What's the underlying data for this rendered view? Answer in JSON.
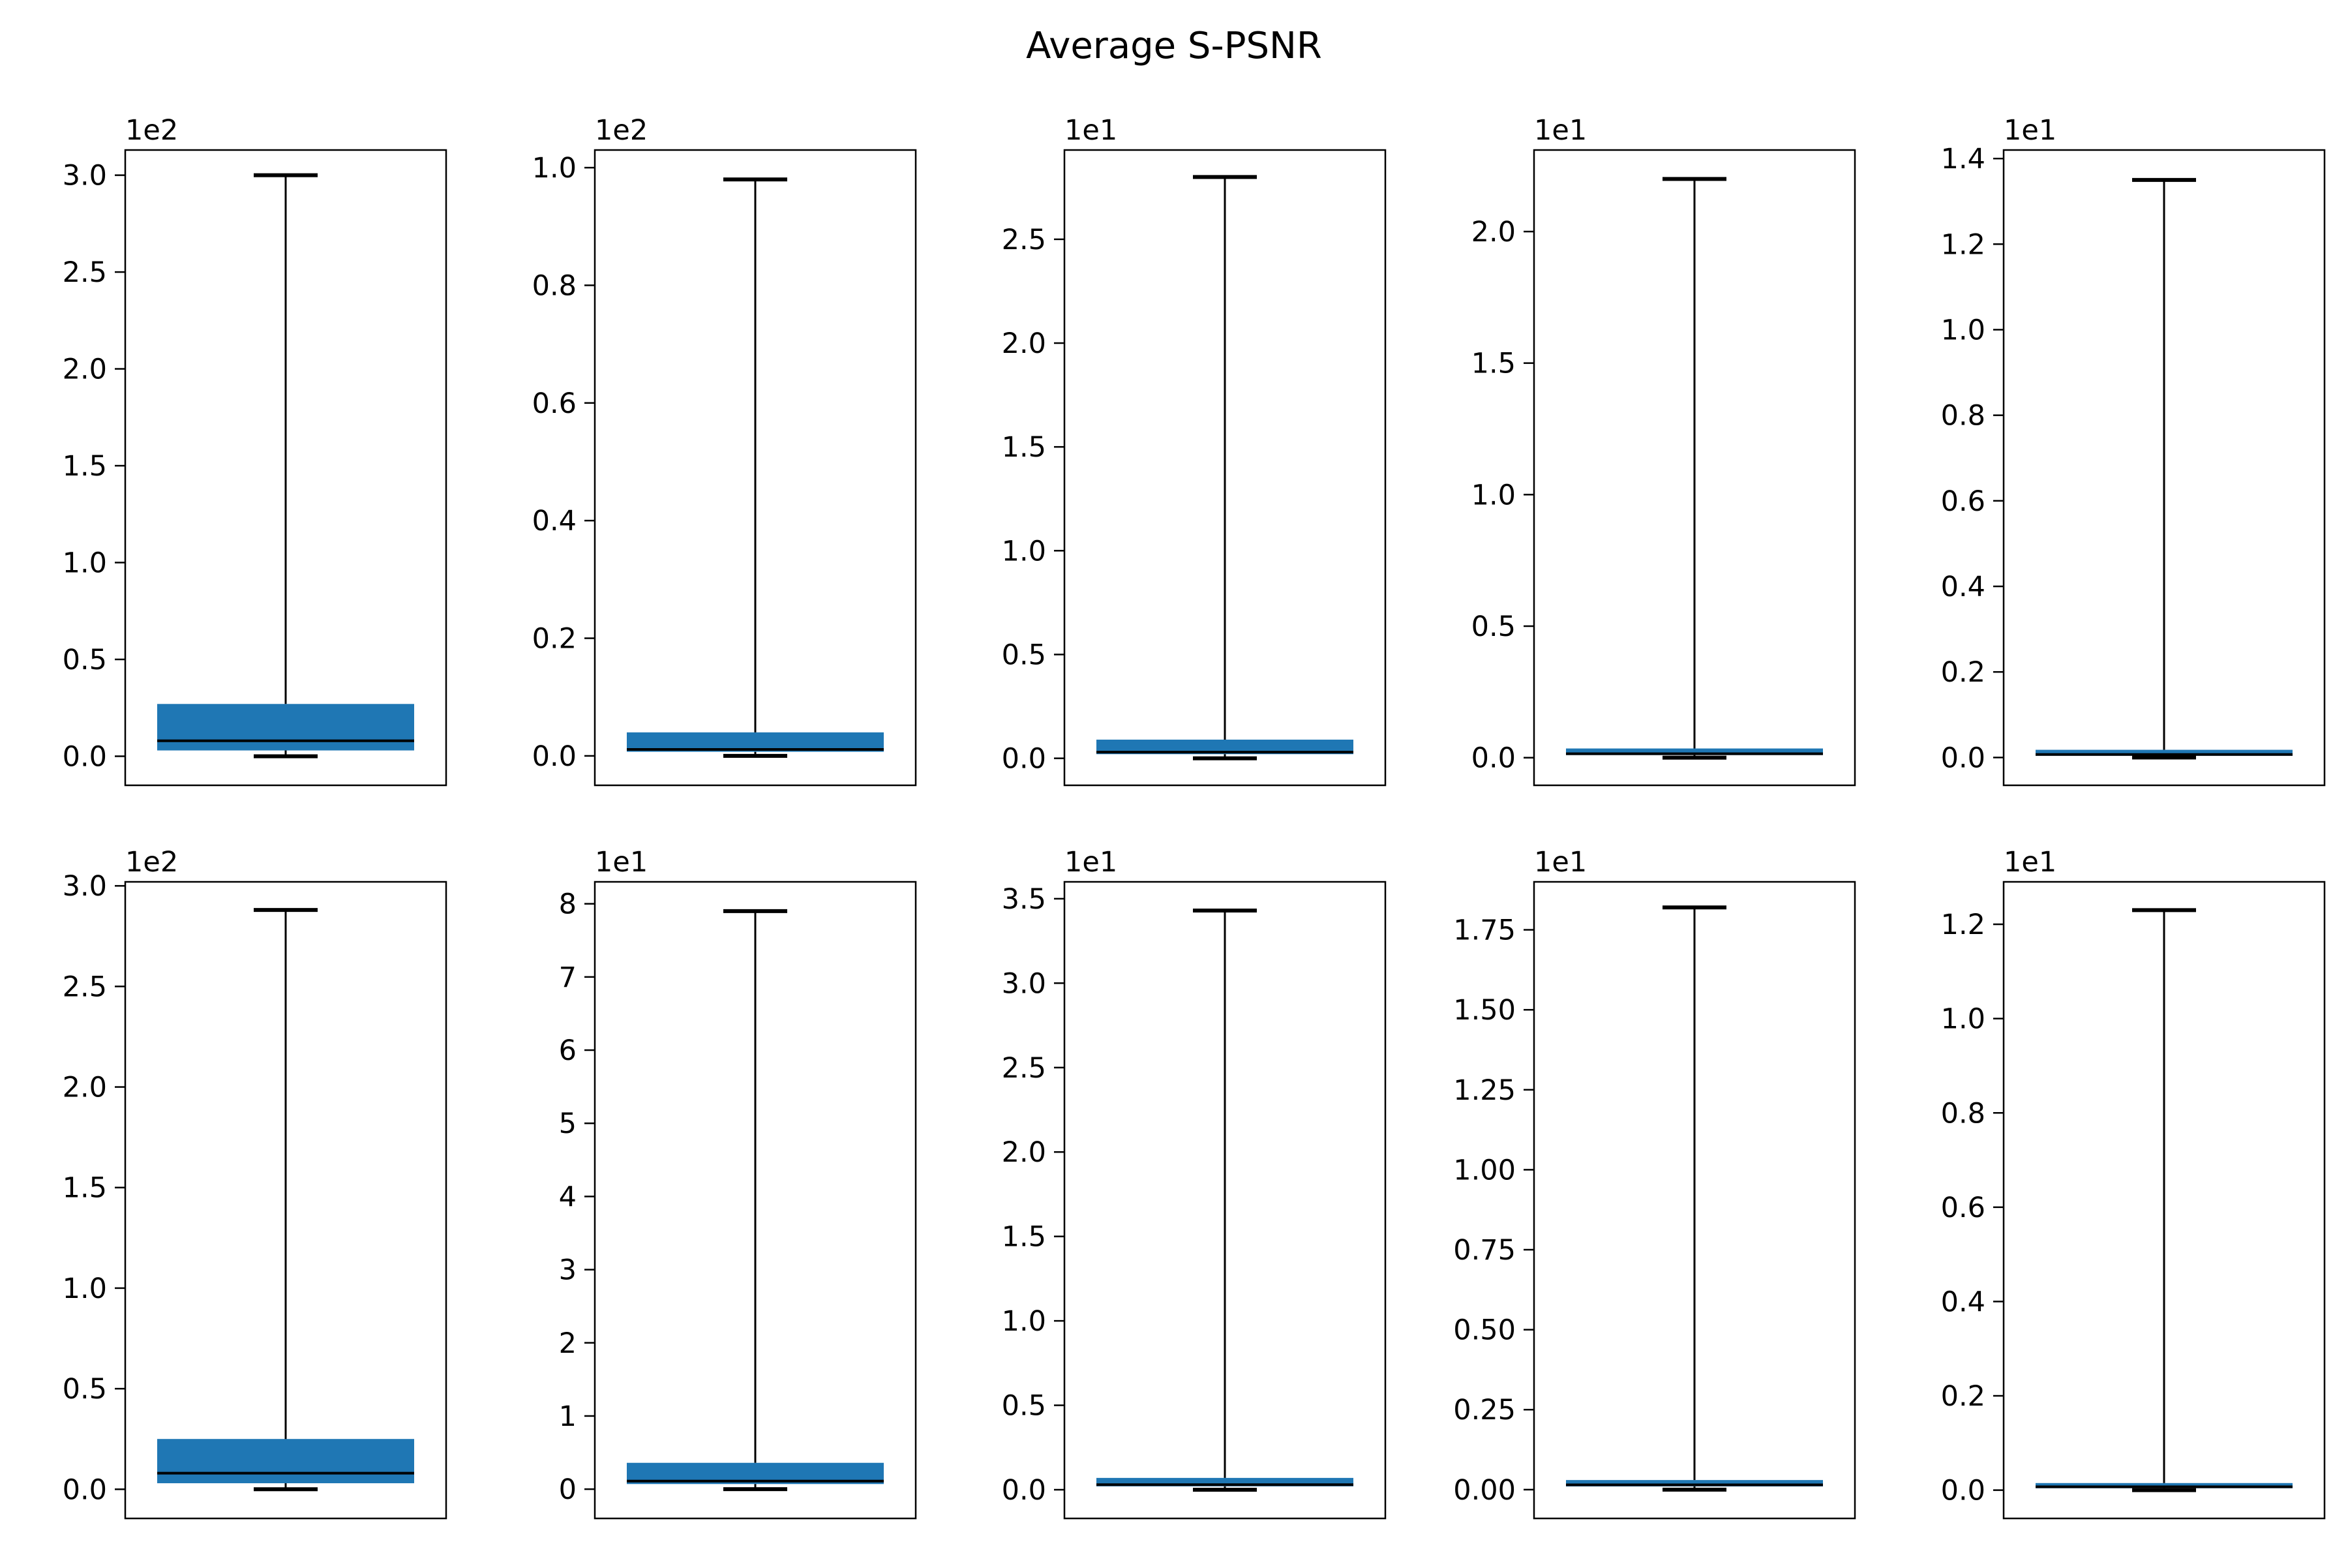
{
  "figure": {
    "title": "Average S-PSNR"
  },
  "colors": {
    "box": "#1f77b4",
    "line": "#000000",
    "background": "#ffffff"
  },
  "chart_data": [
    {
      "type": "box",
      "row": 1,
      "col": 1,
      "offset_label": "1e2",
      "ylim": [
        -0.15,
        3.13
      ],
      "yticks": [
        0.0,
        0.5,
        1.0,
        1.5,
        2.0,
        2.5,
        3.0
      ],
      "tick_labels": [
        "0.0",
        "0.5",
        "1.0",
        "1.5",
        "2.0",
        "2.5",
        "3.0"
      ],
      "box": {
        "whisker_low": 0.0,
        "q1": 0.03,
        "median": 0.08,
        "q3": 0.27,
        "whisker_high": 3.0
      }
    },
    {
      "type": "box",
      "row": 1,
      "col": 2,
      "offset_label": "1e2",
      "ylim": [
        -0.05,
        1.03
      ],
      "yticks": [
        0.0,
        0.2,
        0.4,
        0.6,
        0.8,
        1.0
      ],
      "tick_labels": [
        "0.0",
        "0.2",
        "0.4",
        "0.6",
        "0.8",
        "1.0"
      ],
      "box": {
        "whisker_low": 0.0,
        "q1": 0.007,
        "median": 0.011,
        "q3": 0.04,
        "whisker_high": 0.98
      }
    },
    {
      "type": "box",
      "row": 1,
      "col": 3,
      "offset_label": "1e1",
      "ylim": [
        -0.13,
        2.93
      ],
      "yticks": [
        0.0,
        0.5,
        1.0,
        1.5,
        2.0,
        2.5
      ],
      "tick_labels": [
        "0.0",
        "0.5",
        "1.0",
        "1.5",
        "2.0",
        "2.5"
      ],
      "box": {
        "whisker_low": 0.0,
        "q1": 0.02,
        "median": 0.03,
        "q3": 0.09,
        "whisker_high": 2.8
      }
    },
    {
      "type": "box",
      "row": 1,
      "col": 4,
      "offset_label": "1e1",
      "ylim": [
        -0.105,
        2.31
      ],
      "yticks": [
        0.0,
        0.5,
        1.0,
        1.5,
        2.0
      ],
      "tick_labels": [
        "0.0",
        "0.5",
        "1.0",
        "1.5",
        "2.0"
      ],
      "box": {
        "whisker_low": 0.0,
        "q1": 0.01,
        "median": 0.015,
        "q3": 0.035,
        "whisker_high": 2.2
      }
    },
    {
      "type": "box",
      "row": 1,
      "col": 5,
      "offset_label": "1e1",
      "ylim": [
        -0.065,
        1.42
      ],
      "yticks": [
        0.0,
        0.2,
        0.4,
        0.6,
        0.8,
        1.0,
        1.2,
        1.4
      ],
      "tick_labels": [
        "0.0",
        "0.2",
        "0.4",
        "0.6",
        "0.8",
        "1.0",
        "1.2",
        "1.4"
      ],
      "box": {
        "whisker_low": 0.0,
        "q1": 0.004,
        "median": 0.007,
        "q3": 0.018,
        "whisker_high": 1.35
      }
    },
    {
      "type": "box",
      "row": 2,
      "col": 1,
      "offset_label": "1e2",
      "ylim": [
        -0.145,
        3.02
      ],
      "yticks": [
        0.0,
        0.5,
        1.0,
        1.5,
        2.0,
        2.5,
        3.0
      ],
      "tick_labels": [
        "0.0",
        "0.5",
        "1.0",
        "1.5",
        "2.0",
        "2.5",
        "3.0"
      ],
      "box": {
        "whisker_low": 0.0,
        "q1": 0.03,
        "median": 0.08,
        "q3": 0.25,
        "whisker_high": 2.88
      }
    },
    {
      "type": "box",
      "row": 2,
      "col": 2,
      "offset_label": "1e1",
      "ylim": [
        -0.4,
        8.3
      ],
      "yticks": [
        0,
        1,
        2,
        3,
        4,
        5,
        6,
        7,
        8
      ],
      "tick_labels": [
        "0",
        "1",
        "2",
        "3",
        "4",
        "5",
        "6",
        "7",
        "8"
      ],
      "box": {
        "whisker_low": 0.0,
        "q1": 0.07,
        "median": 0.11,
        "q3": 0.36,
        "whisker_high": 7.9
      }
    },
    {
      "type": "box",
      "row": 2,
      "col": 3,
      "offset_label": "1e1",
      "ylim": [
        -0.17,
        3.6
      ],
      "yticks": [
        0.0,
        0.5,
        1.0,
        1.5,
        2.0,
        2.5,
        3.0,
        3.5
      ],
      "tick_labels": [
        "0.0",
        "0.5",
        "1.0",
        "1.5",
        "2.0",
        "2.5",
        "3.0",
        "3.5"
      ],
      "box": {
        "whisker_low": 0.0,
        "q1": 0.02,
        "median": 0.03,
        "q3": 0.07,
        "whisker_high": 3.43
      }
    },
    {
      "type": "box",
      "row": 2,
      "col": 4,
      "offset_label": "1e1",
      "ylim": [
        -0.09,
        1.9
      ],
      "yticks": [
        0.0,
        0.25,
        0.5,
        0.75,
        1.0,
        1.25,
        1.5,
        1.75
      ],
      "tick_labels": [
        "0.00",
        "0.25",
        "0.50",
        "0.75",
        "1.00",
        "1.25",
        "1.50",
        "1.75"
      ],
      "box": {
        "whisker_low": 0.0,
        "q1": 0.01,
        "median": 0.015,
        "q3": 0.03,
        "whisker_high": 1.82
      }
    },
    {
      "type": "box",
      "row": 2,
      "col": 5,
      "offset_label": "1e1",
      "ylim": [
        -0.06,
        1.29
      ],
      "yticks": [
        0.0,
        0.2,
        0.4,
        0.6,
        0.8,
        1.0,
        1.2
      ],
      "tick_labels": [
        "0.0",
        "0.2",
        "0.4",
        "0.6",
        "0.8",
        "1.0",
        "1.2"
      ],
      "box": {
        "whisker_low": 0.0,
        "q1": 0.004,
        "median": 0.007,
        "q3": 0.015,
        "whisker_high": 1.23
      }
    }
  ]
}
